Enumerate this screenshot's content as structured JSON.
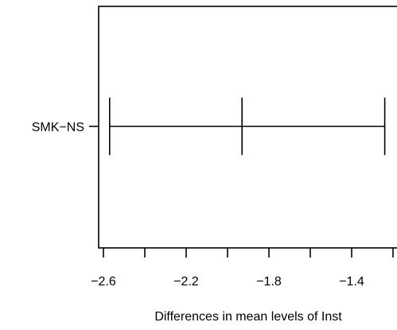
{
  "chart_data": {
    "type": "interval",
    "categories": [
      "SMK−NS"
    ],
    "series": [
      {
        "values": [
          {
            "category": "SMK−NS",
            "lower": -2.57,
            "estimate": -1.93,
            "upper": -1.24
          }
        ]
      }
    ],
    "x_ticks": [
      -2.6,
      -2.4,
      -2.2,
      -2.0,
      -1.8,
      -1.6,
      -1.4,
      -1.2
    ],
    "x_tick_labels": [
      "−2.6",
      "",
      "−2.2",
      "",
      "−1.8",
      "",
      "−1.4",
      ""
    ],
    "xlim": [
      -2.6,
      -1.2
    ],
    "xlabel": "Differences in mean levels of Inst",
    "ylabel": "",
    "title": "",
    "reference_line": 0,
    "grid": false,
    "legend": "none"
  }
}
